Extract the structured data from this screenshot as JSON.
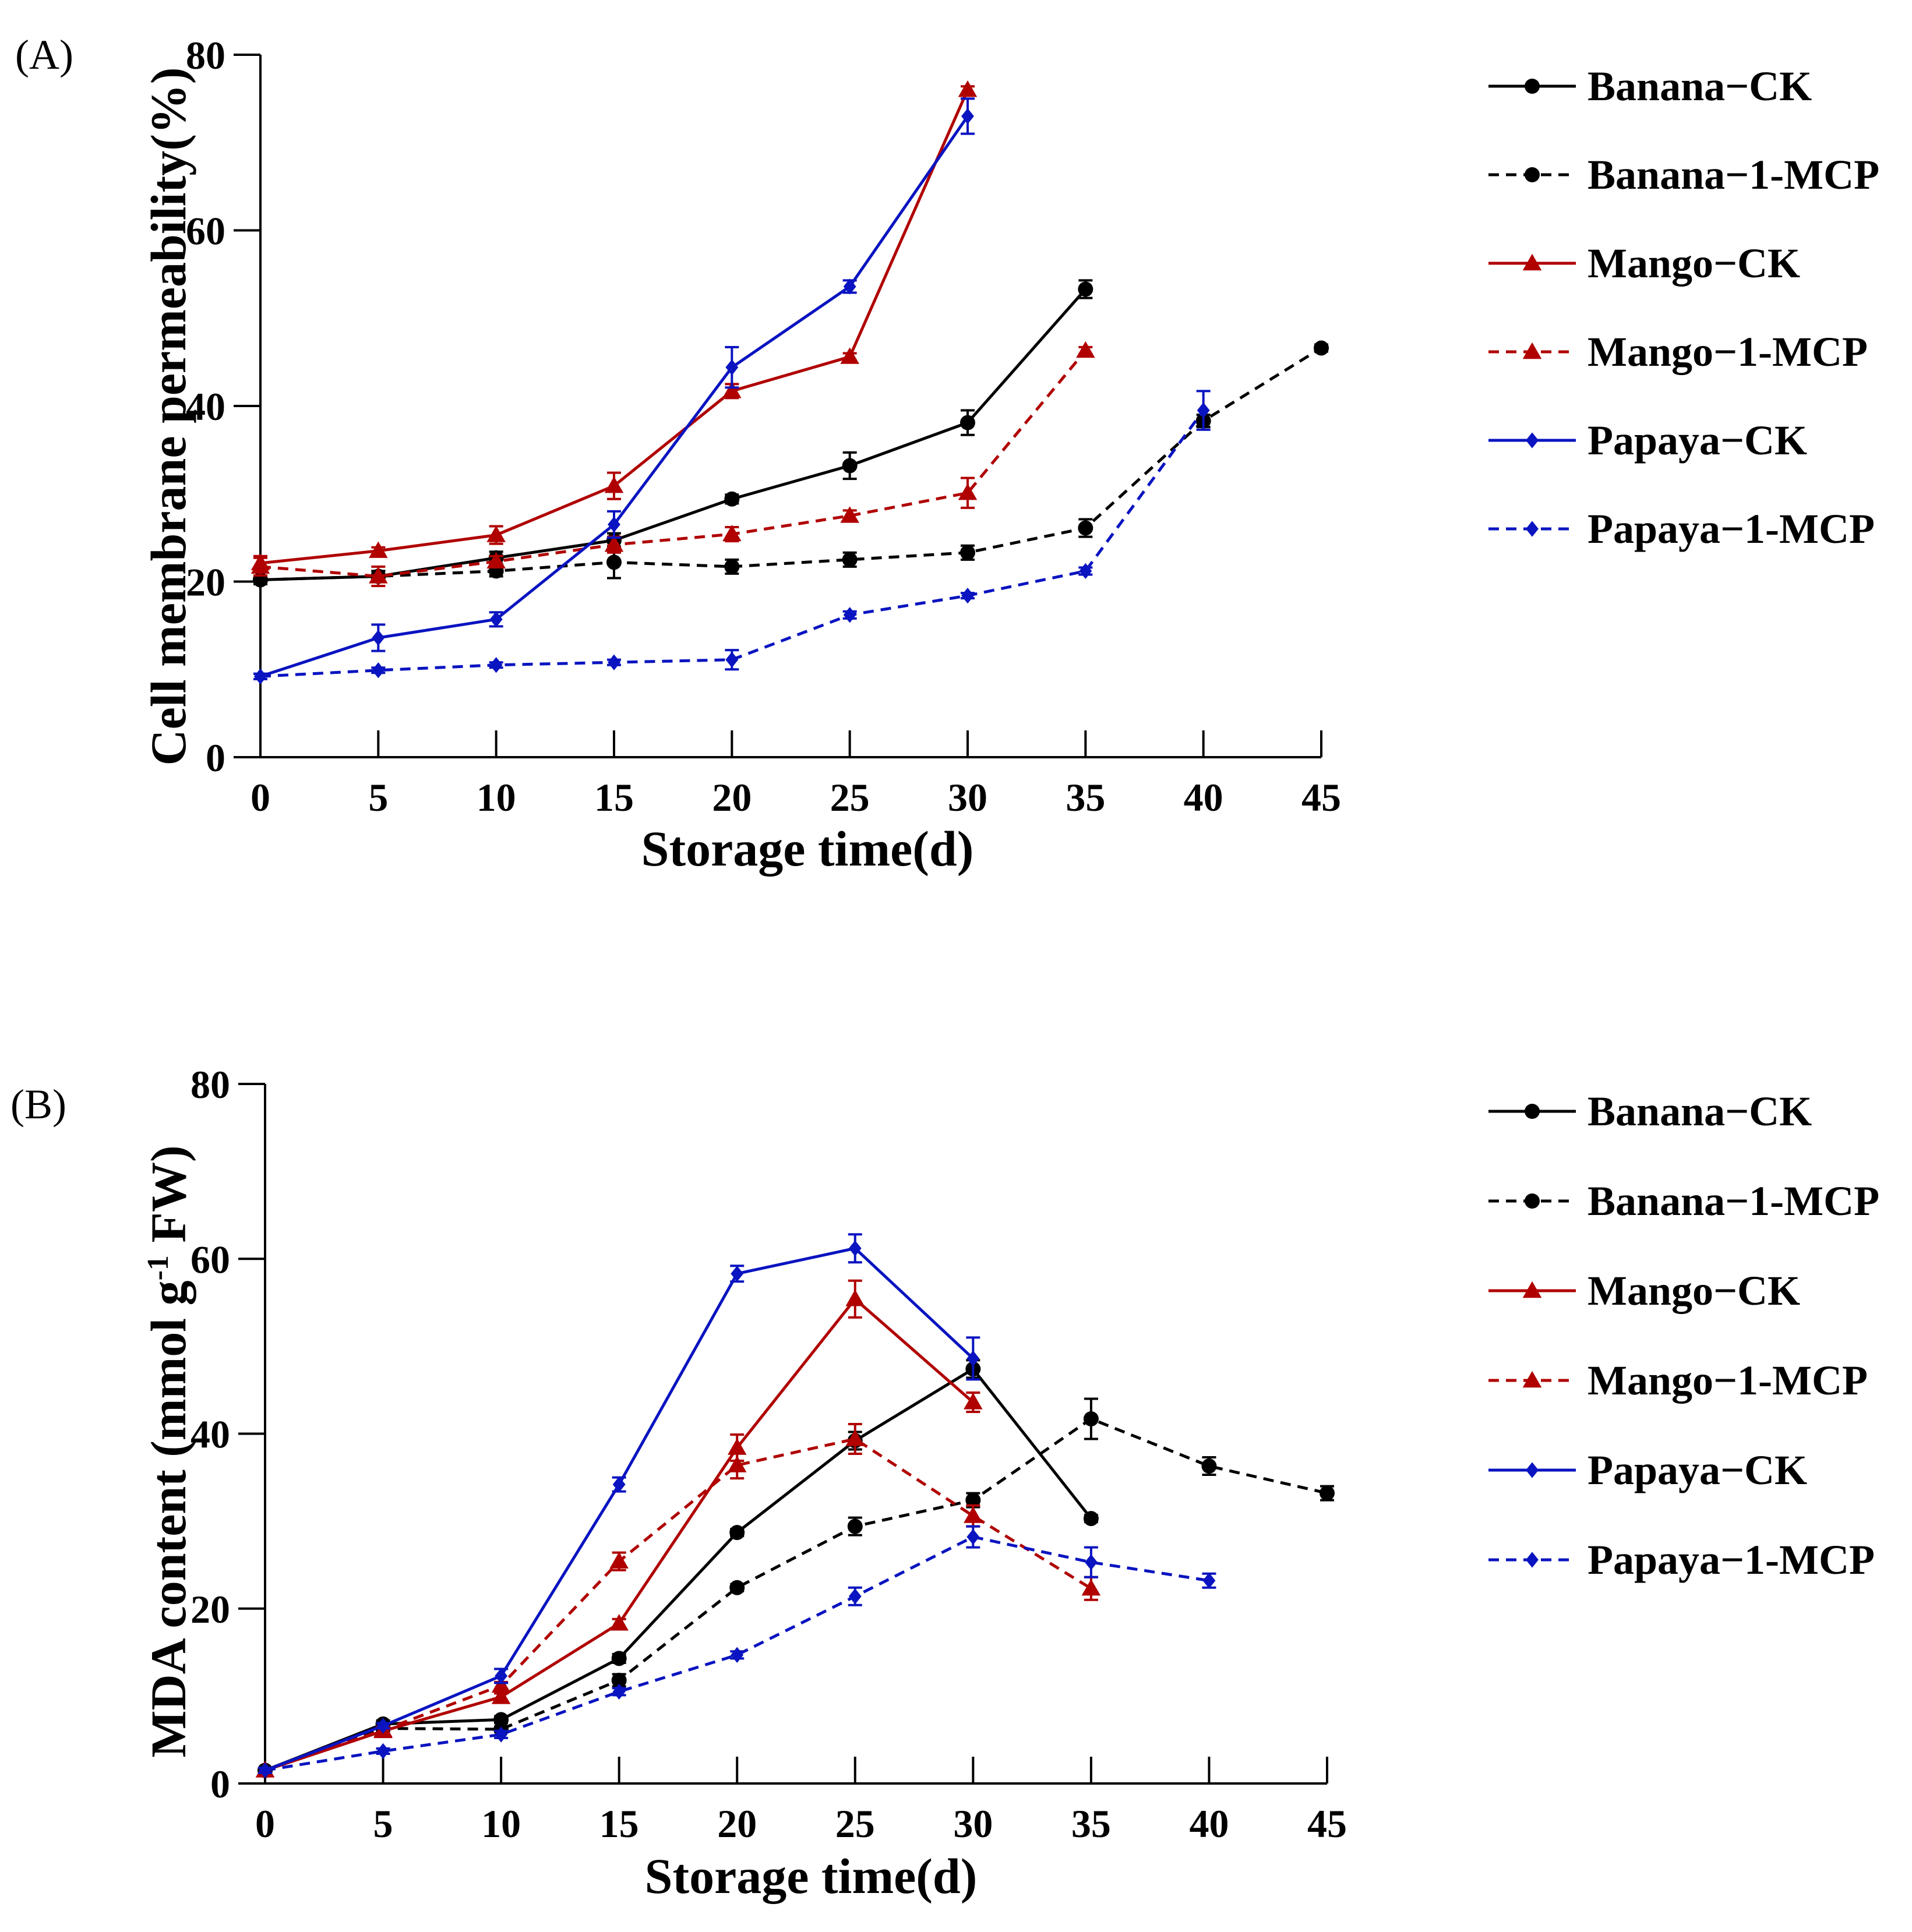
{
  "colors": {
    "Banana": "#000000",
    "Mango": "#b00000",
    "Papaya": "#0a14c0",
    "axis": "#000000"
  },
  "chart_data": [
    {
      "type": "line",
      "panel_label": "(A)",
      "xlabel": "Storage time(d)",
      "ylabel": "Cell membrane permeability(%)",
      "xlim": [
        0,
        45
      ],
      "ylim": [
        0,
        80
      ],
      "xticks": [
        "0",
        "5",
        "10",
        "15",
        "20",
        "25",
        "30",
        "35",
        "40",
        "45"
      ],
      "yticks": [
        "0",
        "20",
        "40",
        "60",
        "80"
      ],
      "legend_position": "right",
      "series": [
        {
          "name": "Banana−CK",
          "fruit": "Banana",
          "dashed": false,
          "marker": "circle",
          "x": [
            0,
            5,
            10,
            15,
            20,
            25,
            30,
            35
          ],
          "y": [
            20.2,
            20.6,
            22.7,
            24.7,
            29.4,
            33.2,
            38.1,
            53.3
          ],
          "err": [
            0.5,
            0.6,
            0.7,
            0.8,
            0.5,
            1.5,
            1.4,
            1.0
          ]
        },
        {
          "name": "Banana−1-MCP",
          "fruit": "Banana",
          "dashed": true,
          "marker": "circle",
          "x": [
            0,
            5,
            10,
            15,
            20,
            25,
            30,
            35,
            40,
            45
          ],
          "y": [
            20.2,
            20.6,
            21.2,
            22.2,
            21.7,
            22.5,
            23.3,
            26.1,
            38.3,
            46.6
          ],
          "err": [
            0.5,
            0.6,
            0.6,
            1.8,
            0.8,
            0.8,
            0.8,
            1.0,
            0.7,
            0.4
          ]
        },
        {
          "name": "Mango−CK",
          "fruit": "Mango",
          "dashed": false,
          "marker": "triangle",
          "x": [
            0,
            5,
            10,
            15,
            20,
            25,
            30
          ],
          "y": [
            22.1,
            23.5,
            25.3,
            30.9,
            41.7,
            45.6,
            76.0
          ],
          "err": [
            0.8,
            0.4,
            1.0,
            1.5,
            0.8,
            0.4,
            0.4
          ]
        },
        {
          "name": "Mango−1-MCP",
          "fruit": "Mango",
          "dashed": true,
          "marker": "triangle",
          "x": [
            0,
            5,
            10,
            15,
            20,
            25,
            30,
            35
          ],
          "y": [
            21.7,
            20.6,
            22.3,
            24.2,
            25.4,
            27.5,
            30.1,
            46.3
          ],
          "err": [
            1.0,
            1.1,
            0.6,
            0.9,
            0.8,
            0.6,
            1.7,
            0.4
          ]
        },
        {
          "name": "Papaya−CK",
          "fruit": "Papaya",
          "dashed": false,
          "marker": "diamond",
          "x": [
            0,
            5,
            10,
            15,
            20,
            25,
            30
          ],
          "y": [
            9.2,
            13.6,
            15.7,
            26.5,
            44.4,
            53.6,
            73.0
          ],
          "err": [
            0.3,
            1.5,
            0.8,
            1.5,
            2.3,
            0.7,
            2.0
          ]
        },
        {
          "name": "Papaya−1-MCP",
          "fruit": "Papaya",
          "dashed": true,
          "marker": "diamond",
          "x": [
            0,
            5,
            10,
            15,
            20,
            25,
            30,
            35,
            40
          ],
          "y": [
            9.2,
            9.9,
            10.5,
            10.8,
            11.1,
            16.2,
            18.4,
            21.2,
            39.5
          ],
          "err": [
            0.3,
            0.3,
            0.3,
            0.3,
            1.1,
            0.4,
            0.3,
            0.4,
            2.2
          ]
        }
      ]
    },
    {
      "type": "line",
      "panel_label": "(B)",
      "xlabel": "Storage time(d)",
      "ylabel_main": "MDA content (mmol g",
      "ylabel_sup": "-1",
      "ylabel_tail": " FW)",
      "xlim": [
        0,
        45
      ],
      "ylim": [
        0,
        80
      ],
      "xticks": [
        "0",
        "5",
        "10",
        "15",
        "20",
        "25",
        "30",
        "35",
        "40",
        "45"
      ],
      "yticks": [
        "0",
        "20",
        "40",
        "60",
        "80"
      ],
      "legend_position": "right",
      "series": [
        {
          "name": "Banana−CK",
          "fruit": "Banana",
          "dashed": false,
          "marker": "circle",
          "x": [
            0,
            5,
            10,
            15,
            20,
            25,
            30,
            35
          ],
          "y": [
            1.5,
            6.8,
            7.3,
            14.3,
            28.7,
            39.2,
            47.4,
            30.3
          ],
          "err": [
            0.3,
            0.4,
            0.4,
            0.5,
            0.4,
            1.0,
            1.0,
            0.4
          ]
        },
        {
          "name": "Banana−1-MCP",
          "fruit": "Banana",
          "dashed": true,
          "marker": "circle",
          "x": [
            0,
            5,
            10,
            15,
            20,
            25,
            30,
            35,
            40,
            45
          ],
          "y": [
            1.5,
            6.3,
            6.2,
            11.8,
            22.4,
            29.4,
            32.4,
            41.7,
            36.3,
            33.2
          ],
          "err": [
            0.3,
            0.3,
            0.3,
            0.7,
            0.4,
            1.0,
            0.8,
            2.3,
            1.0,
            0.8
          ]
        },
        {
          "name": "Mango−CK",
          "fruit": "Mango",
          "dashed": false,
          "marker": "triangle",
          "x": [
            0,
            5,
            10,
            15,
            20,
            25,
            30
          ],
          "y": [
            1.5,
            6.0,
            9.9,
            18.3,
            38.4,
            55.4,
            43.6
          ],
          "err": [
            0.3,
            0.3,
            0.4,
            0.5,
            1.5,
            2.1,
            1.1
          ]
        },
        {
          "name": "Mango−1-MCP",
          "fruit": "Mango",
          "dashed": true,
          "marker": "triangle",
          "x": [
            0,
            5,
            10,
            15,
            20,
            25,
            30,
            35
          ],
          "y": [
            1.5,
            6.1,
            11.2,
            25.4,
            36.4,
            39.4,
            30.6,
            22.3
          ],
          "err": [
            0.3,
            0.4,
            0.4,
            1.0,
            1.5,
            1.7,
            1.2,
            1.3
          ]
        },
        {
          "name": "Papaya−CK",
          "fruit": "Papaya",
          "dashed": false,
          "marker": "diamond",
          "x": [
            0,
            5,
            10,
            15,
            20,
            25,
            30
          ],
          "y": [
            1.5,
            6.6,
            12.3,
            34.2,
            58.3,
            61.2,
            48.6
          ],
          "err": [
            0.3,
            0.3,
            0.8,
            0.8,
            0.9,
            1.6,
            2.4
          ]
        },
        {
          "name": "Papaya−1-MCP",
          "fruit": "Papaya",
          "dashed": true,
          "marker": "diamond",
          "x": [
            0,
            5,
            10,
            15,
            20,
            25,
            30,
            35,
            40
          ],
          "y": [
            1.5,
            3.7,
            5.6,
            10.5,
            14.7,
            21.4,
            28.2,
            25.3,
            23.2
          ],
          "err": [
            0.3,
            0.3,
            0.4,
            0.4,
            0.4,
            1.0,
            1.2,
            1.7,
            0.8
          ]
        }
      ]
    }
  ]
}
